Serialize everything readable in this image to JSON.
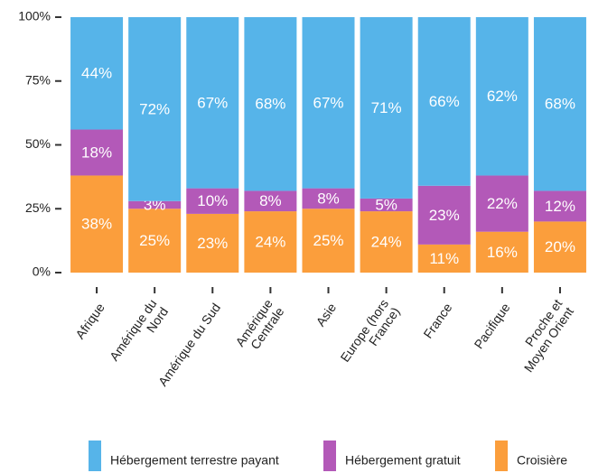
{
  "chart_data": {
    "type": "stacked_bar",
    "categories": [
      [
        "Afrique"
      ],
      [
        "Amérique du",
        "Nord"
      ],
      [
        "Amérique du Sud"
      ],
      [
        "Amérique",
        "Centrale"
      ],
      [
        "Asie"
      ],
      [
        "Europe (hors",
        "France)"
      ],
      [
        "France"
      ],
      [
        "Pacifique"
      ],
      [
        "Proche et",
        "Moyen Orient"
      ]
    ],
    "series": [
      {
        "name": "Hébergement terrestre payant",
        "color": "#56b4e9",
        "values": [
          44,
          72,
          67,
          68,
          67,
          71,
          66,
          62,
          68
        ],
        "value_labels": [
          "44%",
          "72%",
          "67%",
          "68%",
          "67%",
          "71%",
          "66%",
          "62%",
          "68%"
        ]
      },
      {
        "name": "Hébergement gratuit",
        "color": "#b359b8",
        "values": [
          18,
          3,
          10,
          8,
          8,
          5,
          23,
          22,
          12
        ],
        "value_labels": [
          "18%",
          "3%",
          "10%",
          "8%",
          "8%",
          "5%",
          "23%",
          "22%",
          "12%"
        ]
      },
      {
        "name": "Croisière",
        "color": "#fb9e3c",
        "values": [
          38,
          25,
          23,
          24,
          25,
          24,
          11,
          16,
          20
        ],
        "value_labels": [
          "38%",
          "25%",
          "23%",
          "24%",
          "25%",
          "24%",
          "11%",
          "16%",
          "20%"
        ]
      }
    ],
    "ylim": [
      0,
      100
    ],
    "yticks": [
      {
        "value": 0,
        "label": "0%"
      },
      {
        "value": 25,
        "label": "25%"
      },
      {
        "value": 50,
        "label": "50%"
      },
      {
        "value": 75,
        "label": "75%"
      },
      {
        "value": 100,
        "label": "100%"
      }
    ],
    "legend": "bottom"
  }
}
